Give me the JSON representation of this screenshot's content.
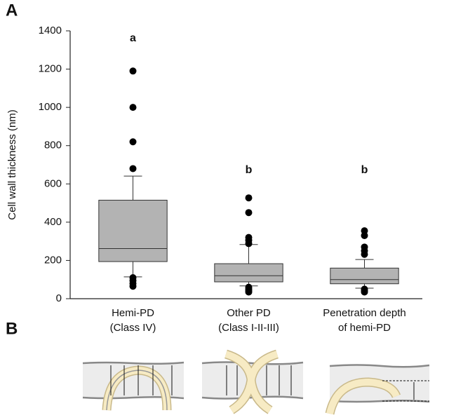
{
  "chart_data": {
    "type": "box",
    "panel_label": "A",
    "ylabel": "Cell wall thickness (nm)",
    "categories": [
      [
        "Hemi-PD",
        "(Class IV)"
      ],
      [
        "Other PD",
        "(Class I-II-III)"
      ],
      [
        "Penetration depth",
        "of hemi-PD"
      ]
    ],
    "group_letters": [
      "a",
      "b",
      "b"
    ],
    "color": "#b3b3b3",
    "boxes": [
      {
        "whislo": 114,
        "q1": 194,
        "med": 262,
        "q3": 515,
        "whishi": 641,
        "fliers": [
          1190,
          1000,
          820,
          680,
          110,
          95,
          80,
          65
        ]
      },
      {
        "whislo": 67,
        "q1": 88,
        "med": 120,
        "q3": 183,
        "whishi": 283,
        "fliers": [
          527,
          450,
          320,
          305,
          288,
          60,
          50,
          42,
          35
        ]
      },
      {
        "whislo": 55,
        "q1": 78,
        "med": 100,
        "q3": 160,
        "whishi": 205,
        "fliers": [
          355,
          330,
          270,
          250,
          232,
          50,
          42,
          35
        ]
      }
    ],
    "ylim": [
      0,
      1400
    ],
    "yticks": [
      0,
      200,
      400,
      600,
      800,
      1000,
      1200,
      1400
    ]
  },
  "panel_b": {
    "label": "B"
  }
}
